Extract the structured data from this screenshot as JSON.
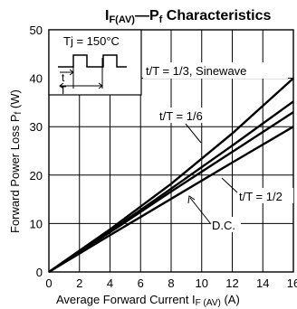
{
  "chart_data": {
    "type": "line",
    "title_parts": {
      "main1": "I",
      "sub1": "F(AV)",
      "dash": "—",
      "main2": "P",
      "sub2": "f",
      "rest": "  Characteristics"
    },
    "xlabel": {
      "text": "Average Forward Current  I",
      "sub": "F (AV)",
      "unit": " (A)"
    },
    "ylabel": {
      "text": "Forward Power Loss  P",
      "sub": "f",
      "unit": " (W)"
    },
    "xlim": [
      0,
      16
    ],
    "ylim": [
      0,
      50
    ],
    "xticks": [
      "0",
      "2",
      "4",
      "6",
      "8",
      "10",
      "12",
      "14",
      "16"
    ],
    "yticks": [
      "0",
      "10",
      "20",
      "30",
      "40",
      "50"
    ],
    "grid": true,
    "inset": {
      "condition": "Tj = 150°C",
      "t_label": "t",
      "T_label": "T"
    },
    "series": [
      {
        "name": "t/T = 1/3,  Sinewave",
        "x": [
          0,
          4,
          8,
          12,
          16
        ],
        "y": [
          0,
          8.8,
          18.2,
          28.6,
          40.0
        ]
      },
      {
        "name": "t/T = 1/6",
        "x": [
          0,
          4,
          8,
          12,
          16
        ],
        "y": [
          0,
          8.4,
          17.2,
          26.1,
          35.2
        ]
      },
      {
        "name": "t/T = 1/2",
        "x": [
          0,
          4,
          8,
          12,
          16
        ],
        "y": [
          0,
          8.2,
          16.6,
          24.8,
          33.0
        ]
      },
      {
        "name": "D.C.",
        "x": [
          0,
          4,
          8,
          12,
          16
        ],
        "y": [
          0,
          7.6,
          15.1,
          22.6,
          30.0
        ]
      }
    ]
  }
}
